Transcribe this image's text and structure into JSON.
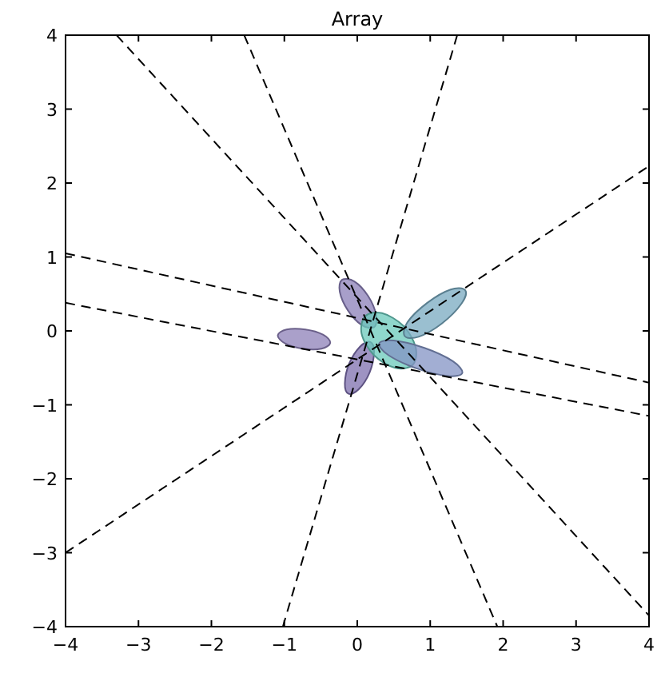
{
  "chart_data": {
    "type": "line",
    "title": "Array",
    "xlim": [
      -4,
      4
    ],
    "ylim": [
      -4,
      4
    ],
    "xticks": [
      {
        "value": -4,
        "label": "−4"
      },
      {
        "value": -3,
        "label": "−3"
      },
      {
        "value": -2,
        "label": "−2"
      },
      {
        "value": -1,
        "label": "−1"
      },
      0,
      1,
      2,
      3,
      4
    ],
    "yticks": [
      {
        "value": -4,
        "label": "−4"
      },
      {
        "value": -3,
        "label": "−3"
      },
      {
        "value": -2,
        "label": "−2"
      },
      {
        "value": -1,
        "label": "−1"
      },
      0,
      1,
      2,
      3,
      4
    ],
    "grid": false,
    "line_style": "dashed",
    "marker": "none",
    "series": [
      {
        "type": "area",
        "color": "#8e80b8",
        "x": [
          -0.37,
          -0.47,
          -0.71,
          -0.97,
          -1.09,
          -0.99,
          -0.75,
          -0.49
        ],
        "values": [
          -0.16,
          -0.05,
          0.02,
          0.02,
          -0.06,
          -0.17,
          -0.24,
          -0.24
        ]
      },
      {
        "type": "area",
        "color": "#8b7fb8",
        "x": [
          0.23,
          0.26,
          0.15,
          -0.04,
          -0.21,
          -0.24,
          -0.13,
          0.06
        ],
        "values": [
          0.05,
          0.21,
          0.47,
          0.67,
          0.69,
          0.53,
          0.28,
          0.08
        ]
      },
      {
        "type": "area",
        "color": "#7d6fae",
        "x": [
          0.18,
          0.04,
          -0.11,
          -0.17,
          -0.12,
          0.02,
          0.17,
          0.23
        ],
        "values": [
          -0.15,
          -0.21,
          -0.44,
          -0.71,
          -0.85,
          -0.79,
          -0.56,
          -0.29
        ]
      },
      {
        "type": "area",
        "color": "#69c9bb",
        "x": [
          0.76,
          0.8,
          0.63,
          0.34,
          0.11,
          0.06,
          0.23,
          0.52
        ],
        "values": [
          -0.46,
          -0.22,
          0.07,
          0.24,
          0.2,
          -0.04,
          -0.33,
          -0.5
        ]
      },
      {
        "type": "area",
        "color": "#78a9c0",
        "x": [
          1.48,
          1.28,
          0.96,
          0.69,
          0.65,
          0.84,
          1.16,
          1.43
        ],
        "values": [
          0.55,
          0.56,
          0.38,
          0.12,
          -0.07,
          -0.08,
          0.1,
          0.37
        ]
      },
      {
        "type": "area",
        "color": "#8393c4",
        "x": [
          1.44,
          1.31,
          0.92,
          0.5,
          0.3,
          0.43,
          0.82,
          1.24
        ],
        "values": [
          -0.57,
          -0.41,
          -0.23,
          -0.13,
          -0.17,
          -0.33,
          -0.51,
          -0.61
        ]
      },
      {
        "color": "#000000",
        "x": [
          -3.3,
          4
        ],
        "values": [
          4,
          -3.85
        ]
      },
      {
        "color": "#000000",
        "x": [
          -1.55,
          1.92
        ],
        "values": [
          4,
          -4
        ]
      },
      {
        "color": "#000000",
        "x": [
          1.37,
          -1.02
        ],
        "values": [
          4,
          -4
        ]
      },
      {
        "color": "#000000",
        "x": [
          -4,
          4
        ],
        "values": [
          -3.0,
          2.23
        ]
      },
      {
        "color": "#000000",
        "x": [
          -4,
          4
        ],
        "values": [
          1.05,
          -0.7
        ]
      },
      {
        "color": "#000000",
        "x": [
          -4,
          4
        ],
        "values": [
          0.38,
          -1.15
        ]
      }
    ]
  }
}
